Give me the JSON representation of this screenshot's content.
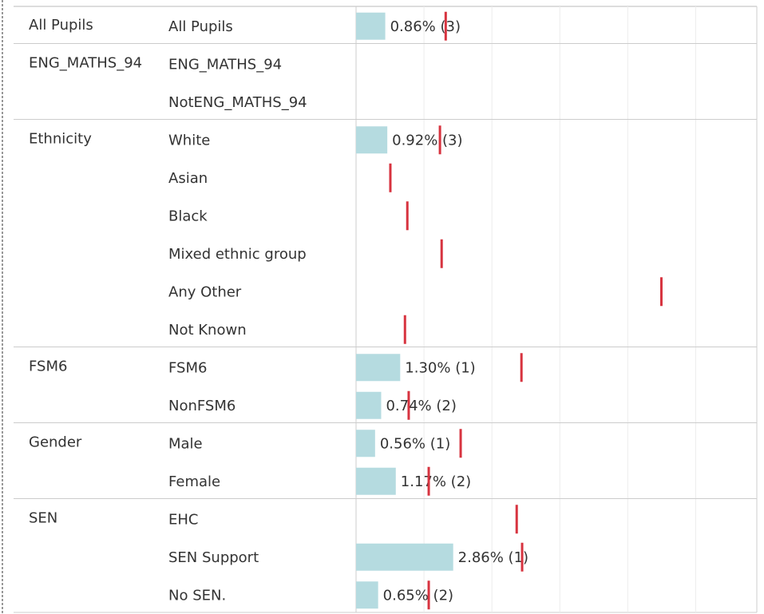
{
  "chart_data": {
    "type": "bar",
    "group": [
      "All Pupils",
      "ENG_MATHS_94",
      null,
      "Ethnicity",
      null,
      null,
      null,
      null,
      null,
      "FSM6",
      null,
      "Gender",
      null,
      "SEN",
      null,
      null
    ],
    "categories": [
      "All Pupils",
      "ENG_MATHS_94",
      "NotENG_MATHS_94",
      "White",
      "Asian",
      "Black",
      "Mixed ethnic group",
      "Any Other",
      "Not Known",
      "FSM6",
      "NonFSM6",
      "Male",
      "Female",
      "EHC",
      "SEN Support",
      "No SEN."
    ],
    "values": [
      0.86,
      null,
      null,
      0.92,
      null,
      null,
      null,
      null,
      null,
      1.3,
      0.74,
      0.56,
      1.17,
      null,
      2.86,
      0.65
    ],
    "value_labels": [
      "0.86% (3)",
      null,
      null,
      "0.92% (3)",
      null,
      null,
      null,
      null,
      null,
      "1.30% (1)",
      "0.74% (2)",
      "0.56% (1)",
      "1.17% (2)",
      null,
      "2.86% (1)",
      "0.65% (2)"
    ],
    "color": "#b5dbe0",
    "reference_values": [
      2.64,
      null,
      null,
      2.47,
      1.01,
      1.51,
      2.52,
      8.99,
      1.44,
      4.87,
      1.55,
      3.08,
      2.14,
      4.73,
      4.89,
      2.14
    ],
    "reference_color": "#d7333f",
    "xlim": [
      0,
      11.8
    ],
    "xticks": [
      0,
      2,
      4,
      6,
      8,
      10
    ],
    "grid": true
  }
}
